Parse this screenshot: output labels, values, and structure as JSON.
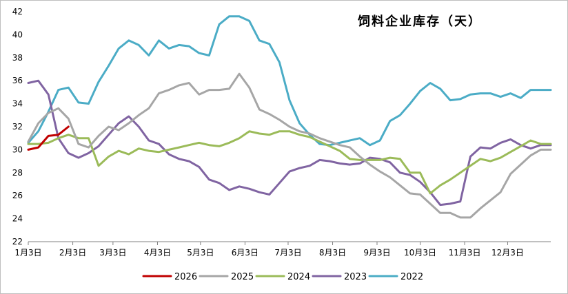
{
  "chart_data": {
    "type": "line",
    "title": "饲料企业库存（天）",
    "xlabel": "",
    "ylabel": "",
    "ylim": [
      22,
      42
    ],
    "yticks": [
      22,
      24,
      26,
      28,
      30,
      32,
      34,
      36,
      38,
      40,
      42
    ],
    "x_domain": [
      0,
      52
    ],
    "grid": false,
    "legend_position": "bottom",
    "categories": [
      "1月3日",
      "2月3日",
      "3月3日",
      "4月3日",
      "5月3日",
      "6月3日",
      "7月3日",
      "8月3日",
      "9月3日",
      "10月3日",
      "11月3日",
      "12月3日"
    ],
    "category_positions": [
      0,
      4.43,
      8.43,
      12.86,
      17.14,
      21.57,
      25.86,
      30.29,
      34.71,
      39.0,
      43.43,
      47.71
    ],
    "series": [
      {
        "name": "2026",
        "color": "#c00000",
        "x": [
          0,
          1,
          2,
          3,
          4
        ],
        "values": [
          30.0,
          30.2,
          31.2,
          31.3,
          32.0
        ]
      },
      {
        "name": "2025",
        "color": "#a6a6a6",
        "x": [
          0,
          1,
          2,
          3,
          4,
          5,
          6,
          7,
          8,
          9,
          10,
          11,
          12,
          13,
          14,
          15,
          16,
          17,
          18,
          19,
          20,
          21,
          22,
          23,
          24,
          25,
          26,
          27,
          28,
          29,
          30,
          31,
          32,
          33,
          34,
          35,
          36,
          37,
          38,
          39,
          40,
          41,
          42,
          43,
          44,
          45,
          46,
          47,
          48,
          49,
          50,
          51,
          52
        ],
        "values": [
          30.7,
          32.3,
          33.2,
          33.6,
          32.7,
          30.5,
          30.2,
          31.2,
          32.0,
          31.7,
          32.3,
          33.0,
          33.6,
          34.9,
          35.2,
          35.6,
          35.8,
          34.8,
          35.2,
          35.2,
          35.3,
          36.6,
          35.4,
          33.5,
          33.1,
          32.6,
          32.0,
          31.6,
          31.4,
          31.0,
          30.7,
          30.4,
          30.2,
          29.4,
          28.7,
          28.1,
          27.6,
          26.9,
          26.2,
          26.1,
          25.3,
          24.5,
          24.5,
          24.1,
          24.1,
          24.9,
          25.6,
          26.3,
          27.9,
          28.7,
          29.5,
          30.0,
          30.0
        ]
      },
      {
        "name": "2024",
        "color": "#9bbb59",
        "x": [
          0,
          1,
          2,
          3,
          4,
          5,
          6,
          7,
          8,
          9,
          10,
          11,
          12,
          13,
          14,
          15,
          16,
          17,
          18,
          19,
          20,
          21,
          22,
          23,
          24,
          25,
          26,
          27,
          28,
          29,
          30,
          31,
          32,
          33,
          34,
          35,
          36,
          37,
          38,
          39,
          40,
          41,
          42,
          43,
          44,
          45,
          46,
          47,
          48,
          49,
          50,
          51,
          52
        ],
        "values": [
          30.5,
          30.5,
          30.6,
          31.0,
          31.3,
          31.0,
          31.0,
          28.6,
          29.4,
          29.9,
          29.6,
          30.1,
          29.9,
          29.8,
          30.0,
          30.2,
          30.4,
          30.6,
          30.4,
          30.3,
          30.6,
          31.0,
          31.6,
          31.4,
          31.3,
          31.6,
          31.6,
          31.3,
          31.1,
          30.7,
          30.3,
          29.9,
          29.2,
          29.1,
          29.1,
          29.1,
          29.3,
          29.2,
          28.0,
          28.0,
          26.2,
          26.9,
          27.4,
          28.0,
          28.6,
          29.2,
          29.0,
          29.3,
          29.8,
          30.3,
          30.8,
          30.5,
          30.5
        ]
      },
      {
        "name": "2023",
        "color": "#8064a2",
        "x": [
          0,
          1,
          2,
          3,
          4,
          5,
          6,
          7,
          8,
          9,
          10,
          11,
          12,
          13,
          14,
          15,
          16,
          17,
          18,
          19,
          20,
          21,
          22,
          23,
          24,
          25,
          26,
          27,
          28,
          29,
          30,
          31,
          32,
          33,
          34,
          35,
          36,
          37,
          38,
          39,
          40,
          41,
          42,
          43,
          44,
          45,
          46,
          47,
          48,
          49,
          50,
          51,
          52
        ],
        "values": [
          35.8,
          36.0,
          34.8,
          31.0,
          29.7,
          29.3,
          29.7,
          30.3,
          31.3,
          32.3,
          32.9,
          32.0,
          30.8,
          30.5,
          29.6,
          29.2,
          29.0,
          28.5,
          27.4,
          27.1,
          26.5,
          26.8,
          26.6,
          26.3,
          26.1,
          27.1,
          28.1,
          28.4,
          28.6,
          29.1,
          29.0,
          28.8,
          28.7,
          28.8,
          29.3,
          29.2,
          28.9,
          28.0,
          27.8,
          27.2,
          26.3,
          25.2,
          25.3,
          25.5,
          29.4,
          30.2,
          30.1,
          30.6,
          30.9,
          30.4,
          30.1,
          30.4,
          30.4
        ]
      },
      {
        "name": "2022",
        "color": "#4bacc6",
        "x": [
          0,
          1,
          2,
          3,
          4,
          5,
          6,
          7,
          8,
          9,
          10,
          11,
          12,
          13,
          14,
          15,
          16,
          17,
          18,
          19,
          20,
          21,
          22,
          23,
          24,
          25,
          26,
          27,
          28,
          29,
          30,
          31,
          32,
          33,
          34,
          35,
          36,
          37,
          38,
          39,
          40,
          41,
          42,
          43,
          44,
          45,
          46,
          47,
          48,
          49,
          50,
          51,
          52
        ],
        "values": [
          30.6,
          31.6,
          33.3,
          35.2,
          35.4,
          34.1,
          34.0,
          35.9,
          37.3,
          38.8,
          39.5,
          39.1,
          38.2,
          39.5,
          38.8,
          39.1,
          39.0,
          38.4,
          38.2,
          40.9,
          41.6,
          41.6,
          41.2,
          39.5,
          39.2,
          37.6,
          34.3,
          32.3,
          31.3,
          30.5,
          30.4,
          30.6,
          30.8,
          31.0,
          30.4,
          30.8,
          32.5,
          33.0,
          34.0,
          35.1,
          35.8,
          35.3,
          34.3,
          34.4,
          34.8,
          34.9,
          34.9,
          34.6,
          34.9,
          34.5,
          35.2,
          35.2,
          35.2
        ]
      }
    ]
  }
}
